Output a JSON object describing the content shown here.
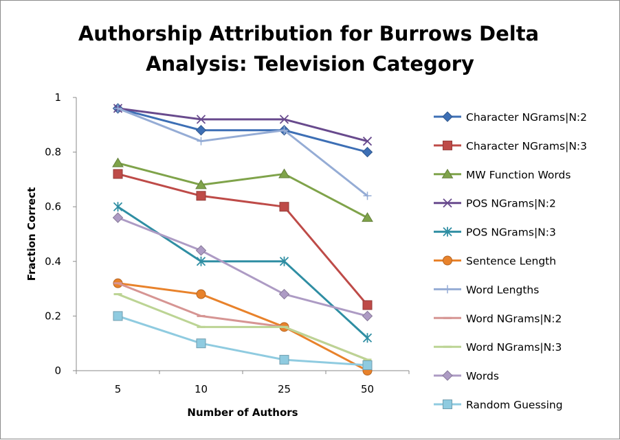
{
  "chart_data": {
    "type": "line",
    "title_lines": [
      "Authorship Attribution for Burrows Delta",
      "Analysis: Television Category"
    ],
    "xlabel": "Number of Authors",
    "ylabel": "Fraction Correct",
    "categories": [
      "5",
      "10",
      "25",
      "50"
    ],
    "ylim": [
      0,
      1
    ],
    "yticks": [
      "0",
      "0.2",
      "0.4",
      "0.6",
      "0.8",
      "1"
    ],
    "grid": false,
    "legend_position": "right",
    "series": [
      {
        "name": "Character NGrams|N:2",
        "color": "#3d6fb5",
        "marker": "diamond",
        "values": [
          0.96,
          0.88,
          0.88,
          0.8
        ]
      },
      {
        "name": "Character NGrams|N:3",
        "color": "#be4b48",
        "marker": "square",
        "values": [
          0.72,
          0.64,
          0.6,
          0.24
        ]
      },
      {
        "name": "MW Function Words",
        "color": "#7fa34a",
        "marker": "triangle",
        "values": [
          0.76,
          0.68,
          0.72,
          0.56
        ]
      },
      {
        "name": "POS NGrams|N:2",
        "color": "#684a8d",
        "marker": "x",
        "values": [
          0.96,
          0.92,
          0.92,
          0.84
        ]
      },
      {
        "name": "POS NGrams|N:3",
        "color": "#2f8ea3",
        "marker": "asterisk",
        "values": [
          0.6,
          0.4,
          0.4,
          0.12
        ]
      },
      {
        "name": "Sentence Length",
        "color": "#e8822b",
        "marker": "circle",
        "values": [
          0.32,
          0.28,
          0.16,
          0.0
        ]
      },
      {
        "name": "Word Lengths",
        "color": "#95acd5",
        "marker": "plus",
        "values": [
          0.96,
          0.84,
          0.88,
          0.64
        ]
      },
      {
        "name": "Word NGrams|N:2",
        "color": "#d69593",
        "marker": "dash",
        "values": [
          0.32,
          0.2,
          0.16,
          0.04
        ]
      },
      {
        "name": "Word NGrams|N:3",
        "color": "#bcd494",
        "marker": "dash",
        "values": [
          0.28,
          0.16,
          0.16,
          0.04
        ]
      },
      {
        "name": "Words",
        "color": "#ad9bc4",
        "marker": "diamond",
        "values": [
          0.56,
          0.44,
          0.28,
          0.2
        ]
      },
      {
        "name": "Random Guessing",
        "color": "#8fcbe0",
        "marker": "square",
        "values": [
          0.2,
          0.1,
          0.04,
          0.02
        ]
      }
    ]
  }
}
